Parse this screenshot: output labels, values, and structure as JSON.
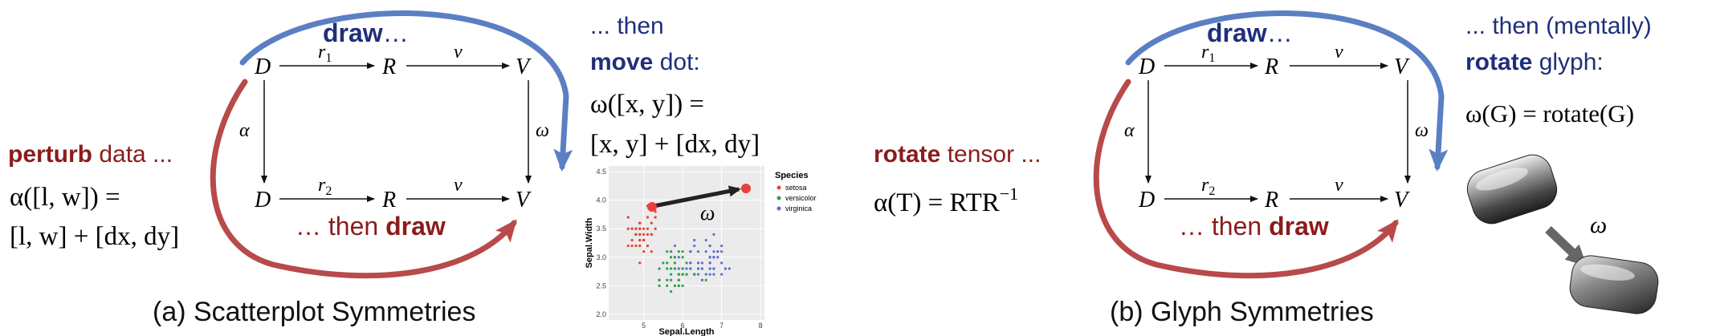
{
  "panel_a": {
    "caption": "(a) Scatterplot Symmetries",
    "nodes": {
      "D1": "D",
      "R1": "R",
      "V1": "V",
      "D2": "D",
      "R2": "R",
      "V2": "V"
    },
    "edges": {
      "r1": "r",
      "r1_sub": "1",
      "v_top": "v",
      "r2": "r",
      "r2_sub": "2",
      "v_bot": "v",
      "alpha": "α",
      "omega": "ω"
    },
    "draw_top": {
      "bold": "draw",
      "rest": "…"
    },
    "then_draw": {
      "prefix": "… then ",
      "bold": "draw"
    },
    "perturb": {
      "bold": "perturb",
      "rest": " data ..."
    },
    "alpha_eq_1": "α([l, w]) =",
    "alpha_eq_2": "[l, w] + [dx, dy]",
    "then_move": "... then",
    "move_dot": {
      "bold": "move",
      "rest": " dot:"
    },
    "omega_eq_1": "ω([x, y]) =",
    "omega_eq_2": "[x, y] + [dx, dy]"
  },
  "panel_b": {
    "caption": "(b) Glyph Symmetries",
    "nodes": {
      "D1": "D",
      "R1": "R",
      "V1": "V",
      "D2": "D",
      "R2": "R",
      "V2": "V"
    },
    "edges": {
      "r1": "r",
      "r1_sub": "1",
      "v_top": "v",
      "r2": "r",
      "r2_sub": "2",
      "v_bot": "v",
      "alpha": "α",
      "omega": "ω"
    },
    "draw_top": {
      "bold": "draw",
      "rest": "…"
    },
    "then_draw": {
      "prefix": "… then ",
      "bold": "draw"
    },
    "rotate_tensor": {
      "bold": "rotate",
      "rest": " tensor ..."
    },
    "alpha_eq": "α(T) = RTR",
    "alpha_eq_sup": "−1",
    "then_mentally": "... then (mentally)",
    "rotate_glyph": {
      "bold": "rotate",
      "rest": " glyph:"
    },
    "omega_eq": "ω(G) = rotate(G)",
    "glyph_arrow_label": "ω"
  },
  "scatter": {
    "xlabel": "Sepal.Length",
    "ylabel": "Sepal.Width",
    "x_ticks": [
      "5",
      "6",
      "7",
      "8"
    ],
    "y_ticks": [
      "2.0",
      "2.5",
      "3.0",
      "3.5",
      "4.0",
      "4.5"
    ],
    "legend_title": "Species",
    "legend": [
      "setosa",
      "versicolor",
      "virginica"
    ],
    "arrow_label": "ω"
  },
  "colors": {
    "red": "#b84a4a",
    "blue": "#5b7fc4",
    "dark_red": "#8b1c1c",
    "dark_blue": "#1f2f7a",
    "setosa": "#e8413c",
    "versicolor": "#2aa34a",
    "virginica": "#5b6fd0"
  }
}
